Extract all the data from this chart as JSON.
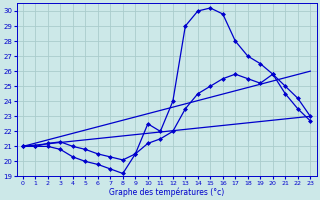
{
  "xlabel": "Graphe des températures (°c)",
  "background_color": "#cce8e8",
  "line_color": "#0000cc",
  "grid_color": "#aacccc",
  "xlim": [
    -0.5,
    23.5
  ],
  "ylim": [
    19,
    30.5
  ],
  "xticks": [
    0,
    1,
    2,
    3,
    4,
    5,
    6,
    7,
    8,
    9,
    10,
    11,
    12,
    13,
    14,
    15,
    16,
    17,
    18,
    19,
    20,
    21,
    22,
    23
  ],
  "yticks": [
    19,
    20,
    21,
    22,
    23,
    24,
    25,
    26,
    27,
    28,
    29,
    30
  ],
  "series": [
    {
      "x": [
        0,
        1,
        2,
        3,
        4,
        5,
        6,
        7,
        8,
        9,
        10,
        11,
        12,
        13,
        14,
        15,
        16,
        17,
        18,
        19,
        20,
        21,
        22,
        23
      ],
      "y": [
        21.0,
        21.0,
        21.0,
        20.8,
        20.3,
        20.0,
        19.8,
        19.5,
        19.2,
        20.5,
        22.5,
        22.0,
        24.0,
        29.0,
        30.0,
        30.2,
        29.8,
        28.0,
        27.0,
        26.5,
        25.8,
        24.5,
        23.5,
        22.7
      ],
      "marker": true
    },
    {
      "x": [
        0,
        1,
        2,
        3,
        4,
        5,
        6,
        7,
        8,
        9,
        10,
        11,
        12,
        13,
        14,
        15,
        16,
        17,
        18,
        19,
        20,
        21,
        22,
        23
      ],
      "y": [
        21.0,
        21.0,
        21.2,
        21.3,
        21.0,
        20.8,
        20.5,
        20.3,
        20.1,
        20.5,
        21.2,
        21.5,
        22.0,
        23.5,
        24.5,
        25.0,
        25.5,
        25.8,
        25.5,
        25.2,
        25.8,
        25.0,
        24.2,
        23.0
      ],
      "marker": true
    },
    {
      "x": [
        0,
        23
      ],
      "y": [
        21.0,
        26.0
      ],
      "marker": false
    },
    {
      "x": [
        0,
        23
      ],
      "y": [
        21.0,
        23.0
      ],
      "marker": false
    }
  ]
}
